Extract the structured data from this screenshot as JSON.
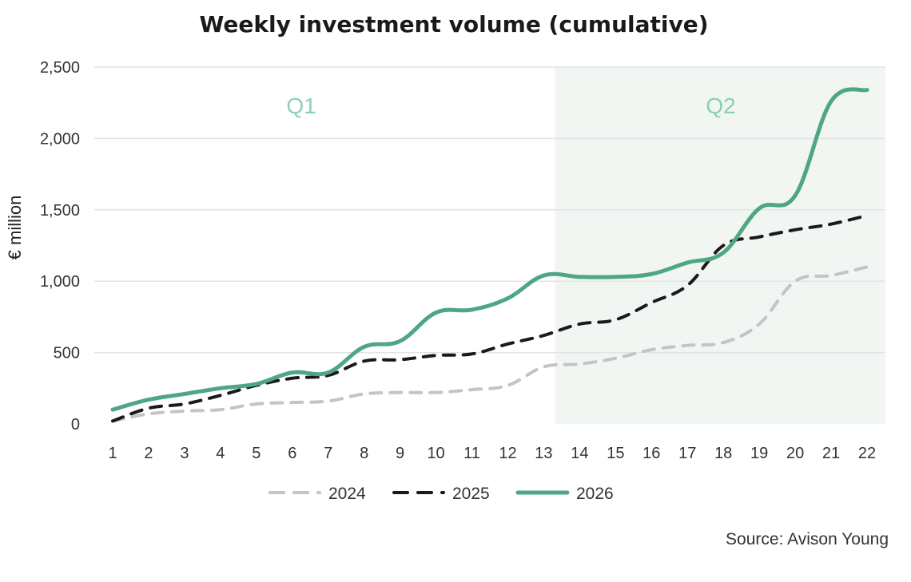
{
  "chart_data": {
    "type": "line",
    "title": "Weekly investment volume (cumulative)",
    "xlabel": "",
    "ylabel": "€ million",
    "x": [
      1,
      2,
      3,
      4,
      5,
      6,
      7,
      8,
      9,
      10,
      11,
      12,
      13,
      14,
      15,
      16,
      17,
      18,
      19,
      20,
      21,
      22
    ],
    "x_tick_labels": [
      "1",
      "2",
      "3",
      "4",
      "5",
      "6",
      "7",
      "8",
      "9",
      "10",
      "11",
      "12",
      "13",
      "14",
      "15",
      "16",
      "17",
      "18",
      "19",
      "20",
      "21",
      "22"
    ],
    "ylim": [
      0,
      2500
    ],
    "y_ticks": [
      0,
      500,
      1000,
      1500,
      2000,
      2500
    ],
    "y_tick_labels": [
      "0",
      "500",
      "1,000",
      "1,500",
      "2,000",
      "2,500"
    ],
    "grid": "horizontal",
    "legend_position": "bottom",
    "shaded_regions": [
      {
        "label": "Q1",
        "from": 1,
        "to": 13
      },
      {
        "label": "Q2",
        "from": 13,
        "to": 22
      }
    ],
    "series": [
      {
        "name": "2024",
        "style": "dashed",
        "color": "#c4c4c4",
        "values": [
          20,
          70,
          90,
          100,
          140,
          150,
          160,
          210,
          220,
          220,
          240,
          270,
          400,
          420,
          460,
          520,
          550,
          570,
          700,
          1000,
          1040,
          1100
        ]
      },
      {
        "name": "2025",
        "style": "dashed",
        "color": "#1a1a1a",
        "values": [
          20,
          110,
          140,
          200,
          270,
          320,
          340,
          440,
          450,
          480,
          490,
          560,
          620,
          700,
          730,
          850,
          970,
          1250,
          1310,
          1360,
          1400,
          1460
        ]
      },
      {
        "name": "2026",
        "style": "solid",
        "color": "#4ea684",
        "values": [
          100,
          170,
          210,
          250,
          280,
          360,
          360,
          540,
          580,
          780,
          800,
          880,
          1040,
          1030,
          1030,
          1050,
          1130,
          1200,
          1510,
          1600,
          2260,
          2340
        ]
      }
    ],
    "source": "Source: Avison Young"
  },
  "colors": {
    "shade": "#f1f6f3",
    "grid": "#e3e3e3",
    "band_label": "#8ccfb2"
  }
}
